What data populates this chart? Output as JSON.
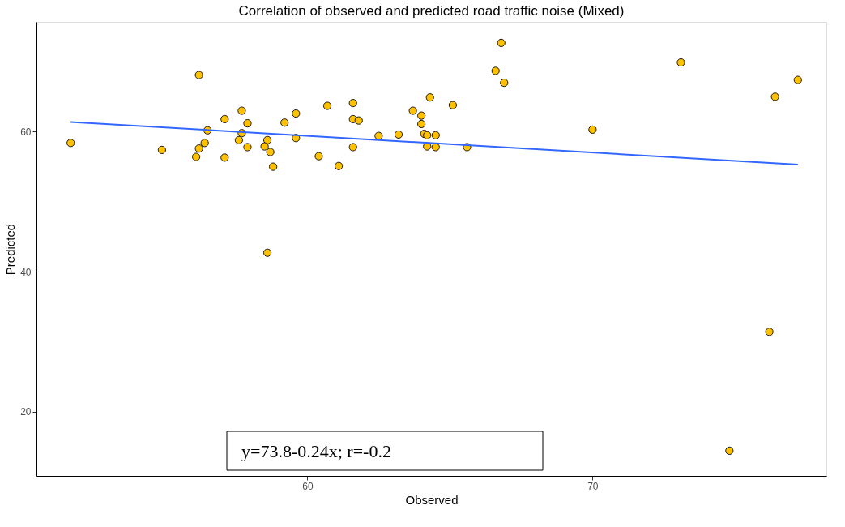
{
  "chart_data": {
    "type": "scatter",
    "title": "Correlation of observed and predicted road traffic noise (Mixed)",
    "xlabel": "Observed",
    "ylabel": "Predicted",
    "xlim": [
      50.5,
      78.2
    ],
    "ylim": [
      10.8,
      75.7
    ],
    "xticks": [
      60,
      70
    ],
    "yticks": [
      20,
      40,
      60
    ],
    "grid": false,
    "annotations": [
      "y=73.8-0.24x; r=-0.2"
    ],
    "series": [
      {
        "color": "#ffc000",
        "marker": "circle",
        "x": [
          51.7,
          54.9,
          56.2,
          56.5,
          56.4,
          56.2,
          56.1,
          57.1,
          57.7,
          57.9,
          57.7,
          57.6,
          57.9,
          57.1,
          58.6,
          58.5,
          58.7,
          58.8,
          58.6,
          59.2,
          59.6,
          59.6,
          60.4,
          60.7,
          61.1,
          61.6,
          61.6,
          61.8,
          61.6,
          62.5,
          63.2,
          63.7,
          64.0,
          64.0,
          64.3,
          64.1,
          64.2,
          64.5,
          64.2,
          64.5,
          65.1,
          65.6,
          66.8,
          66.6,
          66.9,
          70.0,
          73.1,
          76.4,
          77.2,
          76.2,
          74.8
        ],
        "values": [
          58.4,
          57.4,
          68.1,
          60.2,
          58.4,
          57.6,
          56.4,
          61.8,
          63.0,
          61.2,
          59.8,
          58.8,
          57.8,
          56.3,
          58.8,
          57.9,
          57.1,
          55.0,
          42.7,
          61.3,
          62.6,
          59.1,
          56.5,
          63.7,
          55.1,
          64.1,
          61.8,
          61.6,
          57.8,
          59.4,
          59.6,
          63.0,
          62.3,
          61.1,
          64.9,
          59.7,
          59.5,
          59.5,
          57.9,
          57.8,
          63.8,
          57.8,
          72.7,
          68.7,
          67.0,
          60.3,
          69.9,
          65.0,
          67.4,
          31.4,
          14.4
        ]
      },
      {
        "type": "line",
        "color": "#3366ff",
        "x": [
          51.7,
          77.2
        ],
        "values": [
          61.4,
          55.3
        ]
      }
    ]
  }
}
